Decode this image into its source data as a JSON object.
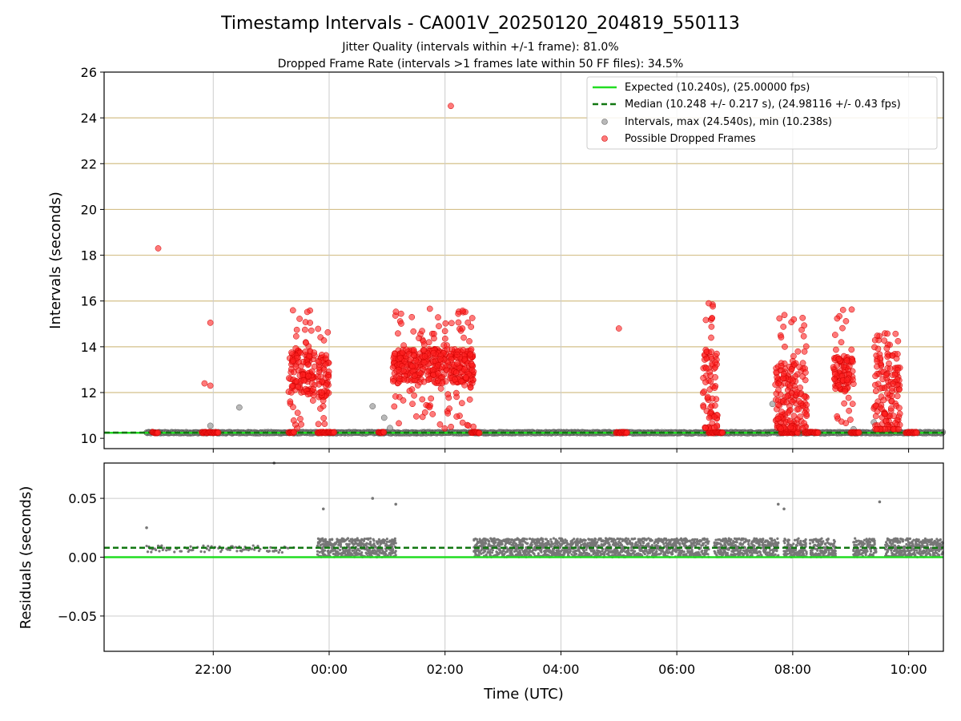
{
  "chart_data": {
    "title": "Timestamp Intervals - CA001V_20250120_204819_550113",
    "subtitle_lines": [
      "Jitter Quality (intervals within +/-1 frame): 81.0%",
      "Dropped Frame Rate (intervals >1 frames late within 50 FF files): 34.5%"
    ],
    "x_axis": {
      "label": "Time (UTC)",
      "range_hours": [
        20.1167,
        10.6
      ],
      "ticks": [
        {
          "label": "22:00",
          "hour": 22
        },
        {
          "label": "00:00",
          "hour": 24
        },
        {
          "label": "02:00",
          "hour": 26
        },
        {
          "label": "04:00",
          "hour": 28
        },
        {
          "label": "06:00",
          "hour": 30
        },
        {
          "label": "08:00",
          "hour": 32
        },
        {
          "label": "10:00",
          "hour": 34
        }
      ]
    },
    "charts": [
      {
        "type": "scatter",
        "ylabel": "Intervals (seconds)",
        "ylim": [
          9.55,
          26.0
        ],
        "yticks": [
          "10",
          "12",
          "14",
          "16",
          "18",
          "20",
          "22",
          "24",
          "26"
        ],
        "grid": "horizontal lines tan, vertical lines grey",
        "legend_position": "top-right",
        "legend": [
          "Expected (10.240s), (25.00000 fps)",
          "Median (10.248 +/- 0.217 s), (24.98116 +/- 0.43 fps)",
          "Intervals, max (24.540s), min (10.238s)",
          "Possible Dropped Frames"
        ],
        "series": [
          {
            "name": "Expected (10.240s), (25.00000 fps)",
            "kind": "line",
            "value": 10.24,
            "color": "#22dd22"
          },
          {
            "name": "Median (10.248 +/- 0.217 s), (24.98116 +/- 0.43 fps)",
            "kind": "dashed-line",
            "value": 10.248,
            "color": "#117711"
          },
          {
            "name": "Intervals, max (24.540s), min (10.238s)",
            "kind": "scatter",
            "color": "#888888",
            "baseline": {
              "x_start_hour": 20.85,
              "x_end_hour": 34.6,
              "y": 10.245
            },
            "outliers": [
              [
                21.95,
                10.55
              ],
              [
                22.45,
                11.35
              ],
              [
                24.75,
                11.4
              ],
              [
                24.95,
                10.9
              ],
              [
                25.05,
                10.45
              ],
              [
                29.95,
                10.25
              ],
              [
                31.65,
                11.5
              ],
              [
                33.4,
                10.7
              ],
              [
                33.05,
                10.4
              ]
            ]
          },
          {
            "name": "Possible Dropped Frames",
            "kind": "scatter",
            "color": "#ff2020",
            "isolated_points": [
              [
                21.05,
                18.3
              ],
              [
                26.1,
                24.52
              ],
              [
                21.95,
                15.05
              ],
              [
                21.85,
                12.4
              ],
              [
                21.95,
                12.3
              ],
              [
                29.0,
                14.8
              ],
              [
                26.2,
                10.95
              ],
              [
                30.55,
                15.9
              ]
            ],
            "clusters": [
              {
                "x_range_hours": [
                  23.3,
                  23.75
                ],
                "y_range": [
                  12.0,
                  14.0
                ],
                "peak_high": 15.6
              },
              {
                "x_range_hours": [
                  23.8,
                  24.0
                ],
                "y_range": [
                  11.8,
                  13.6
                ],
                "peak_high": 14.8
              },
              {
                "x_range_hours": [
                  25.1,
                  26.5
                ],
                "y_range": [
                  12.4,
                  13.9
                ],
                "peak_high": 15.7
              },
              {
                "x_range_hours": [
                  30.45,
                  30.7
                ],
                "y_range": [
                  10.5,
                  13.9
                ],
                "peak_high": 15.9
              },
              {
                "x_range_hours": [
                  31.7,
                  32.25
                ],
                "y_range": [
                  10.5,
                  13.3
                ],
                "peak_high": 15.5
              },
              {
                "x_range_hours": [
                  32.7,
                  33.05
                ],
                "y_range": [
                  12.1,
                  13.6
                ],
                "peak_high": 15.7
              },
              {
                "x_range_hours": [
                  33.4,
                  33.85
                ],
                "y_range": [
                  10.4,
                  13.7
                ],
                "peak_high": 14.6
              }
            ],
            "baseline_runs_hours": [
              [
                20.95,
                21.05
              ],
              [
                21.8,
                22.1
              ],
              [
                23.3,
                23.4
              ],
              [
                23.8,
                24.1
              ],
              [
                24.85,
                24.95
              ],
              [
                26.45,
                26.6
              ],
              [
                28.95,
                29.15
              ],
              [
                30.55,
                30.8
              ],
              [
                31.8,
                32.1
              ],
              [
                32.2,
                32.45
              ],
              [
                33.0,
                33.15
              ],
              [
                33.95,
                34.15
              ]
            ]
          }
        ]
      },
      {
        "type": "scatter",
        "ylabel": "Residuals (seconds)",
        "ylim": [
          -0.08,
          0.08
        ],
        "yticks": [
          "0.05",
          "0.00",
          "−0.05"
        ],
        "grid": "on",
        "series": [
          {
            "name": "expected",
            "kind": "line",
            "value": 0.0,
            "color": "#22dd22"
          },
          {
            "name": "median",
            "kind": "dashed-line",
            "value": 0.008,
            "color": "#117711"
          },
          {
            "name": "residuals",
            "kind": "scatter",
            "color": "#777777",
            "dense_band_hours": [
              [
                23.8,
                25.15
              ],
              [
                26.5,
                30.55
              ],
              [
                30.65,
                31.75
              ],
              [
                31.85,
                32.25
              ],
              [
                32.3,
                32.75
              ],
              [
                33.05,
                33.45
              ],
              [
                33.6,
                34.6
              ]
            ],
            "band_values": [
              0.0,
              0.016
            ],
            "sparse_hours": [
              20.85,
              23.4
            ],
            "sparse_values": [
              0.0,
              0.012
            ],
            "outliers": [
              [
                20.85,
                0.025
              ],
              [
                23.9,
                0.041
              ],
              [
                24.75,
                0.05
              ],
              [
                25.15,
                0.045
              ],
              [
                31.75,
                0.045
              ],
              [
                31.85,
                0.041
              ],
              [
                33.5,
                0.047
              ],
              [
                23.05,
                0.08
              ]
            ]
          }
        ]
      }
    ]
  }
}
